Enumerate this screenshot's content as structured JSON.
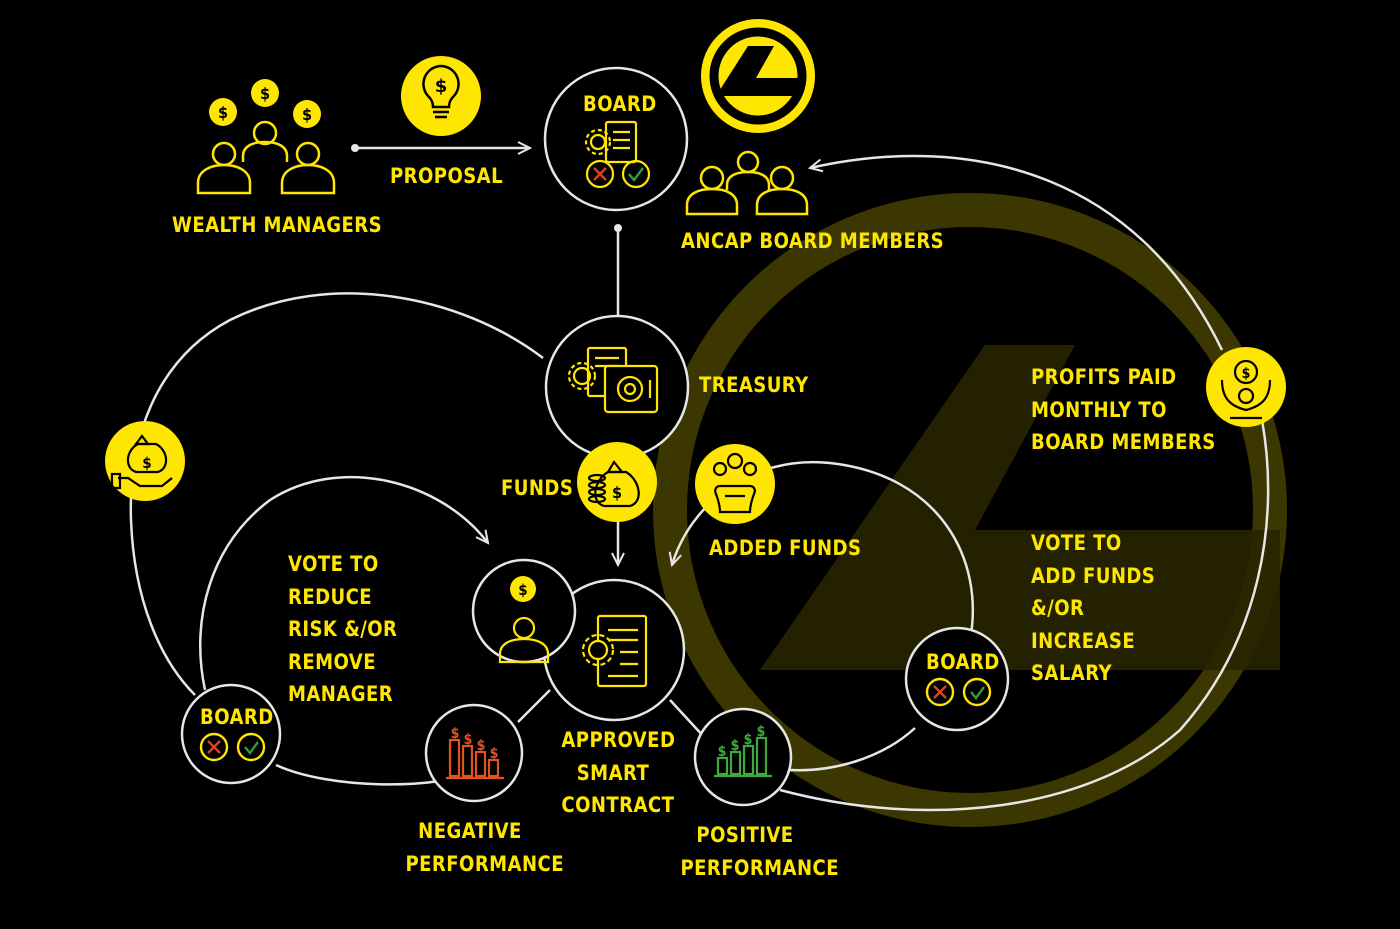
{
  "colors": {
    "background": "#000000",
    "accent": "#FFE600",
    "line": "#E6E6E6",
    "negative": "#E0521E",
    "positive": "#3DAA3D",
    "reject": "#E0421E",
    "approve": "#2E9E3E"
  },
  "nodes": {
    "wealth_managers": {
      "label": "WEALTH MANAGERS",
      "icon": "people-lightbulb-icon"
    },
    "proposal": {
      "label": "PROPOSAL",
      "icon": "lightbulb-dollar-icon"
    },
    "board_top": {
      "label": "BOARD",
      "icon": "document-gear-vote-icon"
    },
    "ancap_board_members": {
      "label": "ANCAP BOARD MEMBERS",
      "icon": "people-group-icon"
    },
    "treasury": {
      "label": "TREASURY",
      "icon": "safe-document-icon"
    },
    "funds": {
      "label": "FUNDS",
      "icon": "money-bag-coins-icon"
    },
    "added_funds": {
      "label": "ADDED FUNDS",
      "icon": "coin-pot-icon"
    },
    "approved_smart_contract": {
      "label_lines": [
        "APPROVED",
        "SMART",
        "CONTRACT"
      ],
      "icon": "contract-gear-icon"
    },
    "manager": {
      "icon": "manager-lightbulb-icon"
    },
    "board_left": {
      "label": "BOARD",
      "icon": "vote-icon"
    },
    "board_right": {
      "label": "BOARD",
      "icon": "vote-icon"
    },
    "negative_performance": {
      "label_lines": [
        "NEGATIVE",
        "PERFORMANCE"
      ],
      "icon": "bar-chart-dollar-icon"
    },
    "positive_performance": {
      "label_lines": [
        "POSITIVE",
        "PERFORMANCE"
      ],
      "icon": "bar-chart-dollar-icon"
    },
    "vote_reduce": {
      "label_lines": [
        "VOTE TO",
        "REDUCE",
        "RISK &/OR",
        "REMOVE",
        "MANAGER"
      ]
    },
    "vote_add": {
      "label_lines": [
        "VOTE TO",
        "ADD FUNDS",
        "&/OR",
        "INCREASE",
        "SALARY"
      ]
    },
    "profits_paid": {
      "label_lines": [
        "PROFITS PAID",
        "MONTHLY TO",
        "BOARD MEMBERS"
      ],
      "icon": "person-money-icon"
    },
    "hand_money": {
      "icon": "hand-money-bag-icon"
    },
    "ancap_logo": {
      "icon": "ancap-logo-icon"
    }
  }
}
